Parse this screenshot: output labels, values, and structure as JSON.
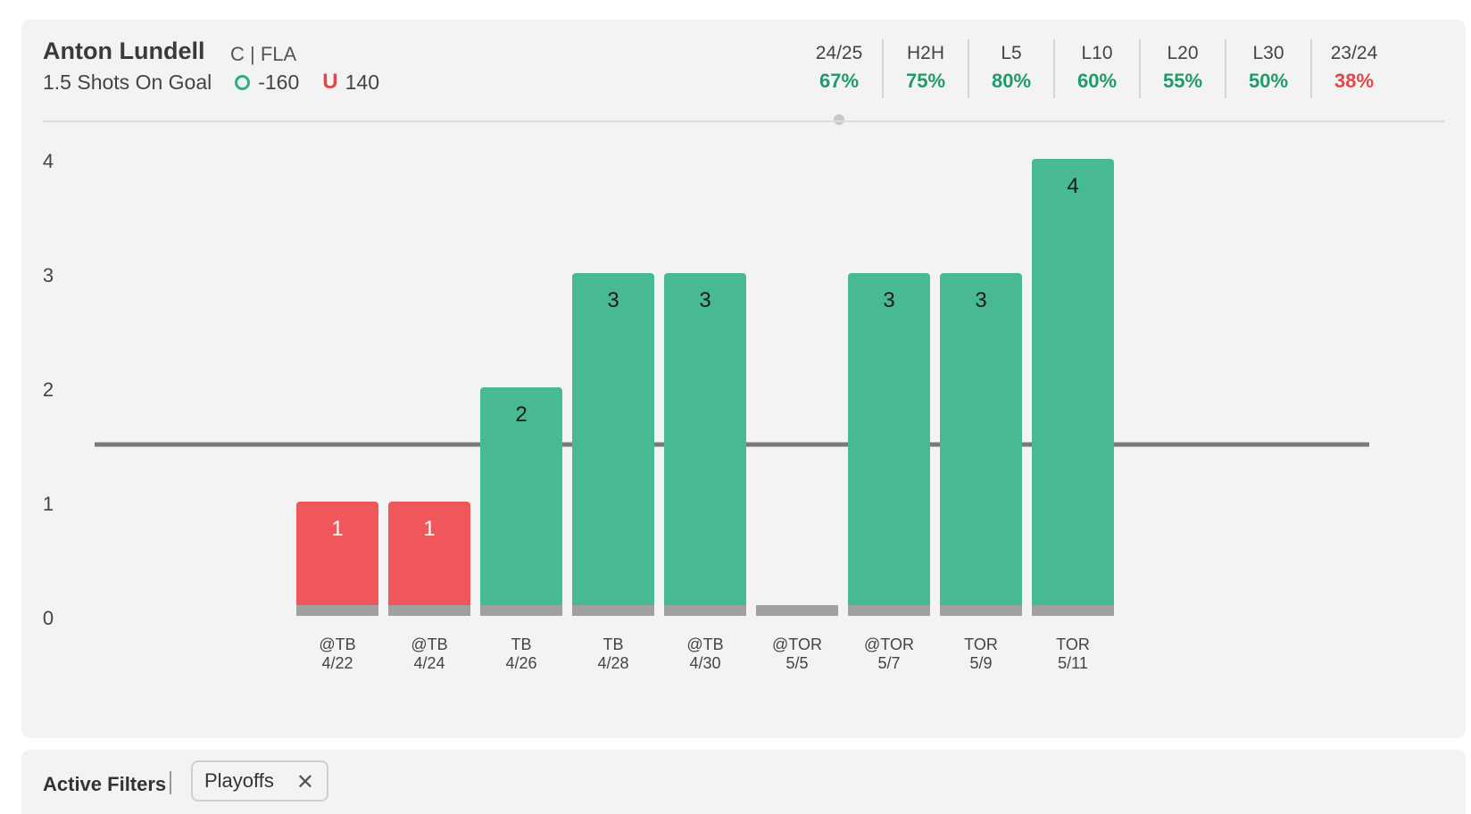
{
  "header": {
    "player_name": "Anton Lundell",
    "player_position": "C | FLA",
    "prop": "1.5 Shots On Goal",
    "over_odds": "-160",
    "under_label": "U",
    "under_odds": "140"
  },
  "stats": [
    {
      "label": "24/25",
      "value": "67%",
      "color": "green",
      "selected": true
    },
    {
      "label": "H2H",
      "value": "75%",
      "color": "green"
    },
    {
      "label": "L5",
      "value": "80%",
      "color": "green"
    },
    {
      "label": "L10",
      "value": "60%",
      "color": "green"
    },
    {
      "label": "L20",
      "value": "55%",
      "color": "green"
    },
    {
      "label": "L30",
      "value": "50%",
      "color": "green"
    },
    {
      "label": "23/24",
      "value": "38%",
      "color": "red"
    }
  ],
  "chart_data": {
    "type": "bar",
    "categories": [
      "@TB\n4/22",
      "@TB\n4/24",
      "TB\n4/26",
      "TB\n4/28",
      "@TB\n4/30",
      "@TOR\n5/5",
      "@TOR\n5/7",
      "TOR\n5/9",
      "TOR\n5/11"
    ],
    "category_labels": [
      {
        "opponent": "@TB",
        "date": "4/22"
      },
      {
        "opponent": "@TB",
        "date": "4/24"
      },
      {
        "opponent": "TB",
        "date": "4/26"
      },
      {
        "opponent": "TB",
        "date": "4/28"
      },
      {
        "opponent": "@TB",
        "date": "4/30"
      },
      {
        "opponent": "@TOR",
        "date": "5/5"
      },
      {
        "opponent": "@TOR",
        "date": "5/7"
      },
      {
        "opponent": "TOR",
        "date": "5/9"
      },
      {
        "opponent": "TOR",
        "date": "5/11"
      }
    ],
    "values": [
      1,
      1,
      2,
      3,
      3,
      0,
      3,
      3,
      4
    ],
    "data_labels": [
      "1",
      "1",
      "2",
      "3",
      "3",
      "",
      "3",
      "3",
      "4"
    ],
    "line_value": 1.5,
    "ylim": [
      0,
      4
    ],
    "yticks": [
      0,
      1,
      2,
      3,
      4
    ],
    "ytick_labels": [
      "0",
      "1",
      "2",
      "3",
      "4"
    ],
    "colors": {
      "over": "#47b994",
      "under": "#f0575a",
      "base": "#a0a0a0",
      "line": "#7a7a7a"
    }
  },
  "filters": {
    "label": "Active Filters",
    "chips": [
      {
        "label": "Playoffs",
        "close": "✕"
      }
    ]
  }
}
